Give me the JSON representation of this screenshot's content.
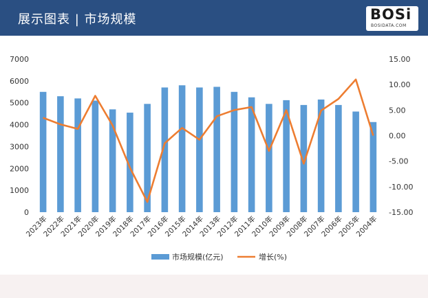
{
  "header": {
    "title": "展示图表 | 市场规模",
    "logo_main": "BOSi",
    "logo_sub": "BOSIDATA.COM"
  },
  "colors": {
    "header_bg": "#2a4f82",
    "bar": "#5b9bd5",
    "line": "#ed7d31"
  },
  "chart_data": {
    "type": "bar",
    "categories": [
      "2023年",
      "2022年",
      "2021年",
      "2020年",
      "2019年",
      "2018年",
      "2017年",
      "2016年",
      "2015年",
      "2014年",
      "2013年",
      "2012年",
      "2011年",
      "2010年",
      "2009年",
      "2008年",
      "2007年",
      "2006年",
      "2005年",
      "2004年"
    ],
    "series": [
      {
        "name": "市场规模(亿元)",
        "type": "bar",
        "axis": "left",
        "values": [
          5500,
          5300,
          5200,
          5100,
          4700,
          4550,
          4950,
          5700,
          5800,
          5700,
          5730,
          5500,
          5250,
          4950,
          5120,
          4900,
          5150,
          4900,
          4600,
          4120
        ]
      },
      {
        "name": "增长(%)",
        "type": "line",
        "axis": "right",
        "values": [
          3.5,
          2.2,
          1.3,
          7.8,
          2.0,
          -6.3,
          -13.0,
          -1.5,
          1.5,
          -0.8,
          3.8,
          5.0,
          5.6,
          -3.0,
          5.0,
          -5.5,
          4.9,
          7.2,
          11.0,
          0.0
        ]
      }
    ],
    "y_left": {
      "ylim": [
        0,
        7000
      ],
      "ticks": [
        "0",
        "1000",
        "2000",
        "3000",
        "4000",
        "5000",
        "6000",
        "7000"
      ],
      "tick_values": [
        0,
        1000,
        2000,
        3000,
        4000,
        5000,
        6000,
        7000
      ]
    },
    "y_right": {
      "ylim": [
        -15,
        15
      ],
      "ticks": [
        "-15.00",
        "-10.00",
        "-5.00",
        "0.00",
        "5.00",
        "10.00",
        "15.00"
      ],
      "tick_values": [
        -15,
        -10,
        -5,
        0,
        5,
        10,
        15
      ]
    },
    "legend_position": "bottom",
    "grid": false
  }
}
